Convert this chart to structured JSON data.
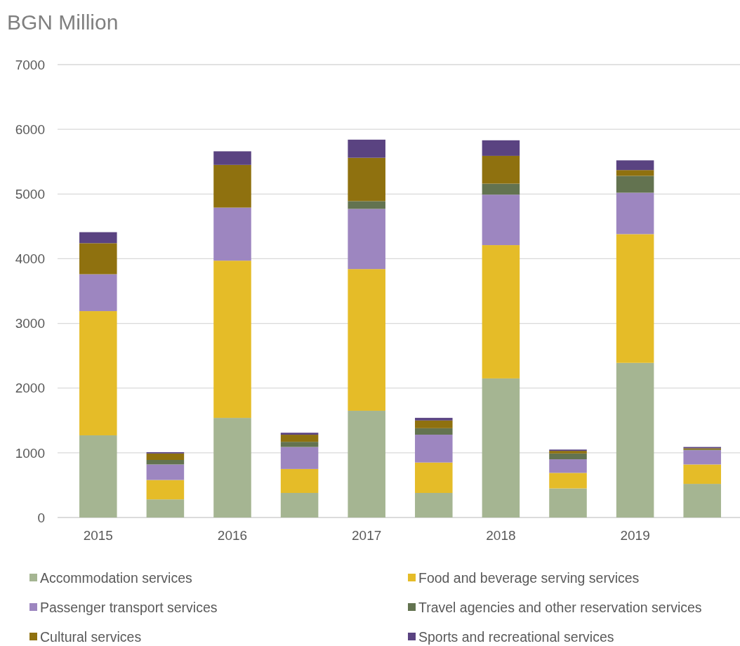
{
  "chart_data": {
    "type": "bar",
    "stacked": true,
    "ylabel": "BGN Million",
    "categories": [
      "2015",
      null,
      "2016",
      null,
      "2017",
      null,
      "2018",
      null,
      "2019",
      null
    ],
    "series": [
      {
        "name": "Accommodation services",
        "color": "#a5b592",
        "values": [
          1270,
          280,
          1540,
          380,
          1650,
          380,
          2150,
          450,
          2390,
          520
        ]
      },
      {
        "name": "Food and beverage serving services",
        "color": "#e5bc28",
        "values": [
          1920,
          300,
          2430,
          370,
          2190,
          470,
          2060,
          240,
          1990,
          300
        ]
      },
      {
        "name": "Passenger transport services",
        "color": "#9d86c0",
        "values": [
          570,
          240,
          820,
          340,
          930,
          430,
          780,
          210,
          640,
          220
        ]
      },
      {
        "name": "Travel agencies and other reservation services",
        "color": "#637350",
        "values": [
          0,
          70,
          0,
          80,
          120,
          100,
          170,
          90,
          260,
          10
        ]
      },
      {
        "name": "Cultural services",
        "color": "#8f710f",
        "values": [
          480,
          100,
          660,
          110,
          670,
          120,
          430,
          40,
          90,
          20
        ]
      },
      {
        "name": "Sports and recreational services",
        "color": "#5a4381",
        "values": [
          170,
          20,
          210,
          30,
          280,
          40,
          240,
          20,
          150,
          20
        ]
      }
    ],
    "ylim": [
      0,
      7000
    ],
    "yticks": [
      0,
      1000,
      2000,
      3000,
      4000,
      5000,
      6000,
      7000
    ],
    "grid": "y",
    "legend": "bottom"
  }
}
